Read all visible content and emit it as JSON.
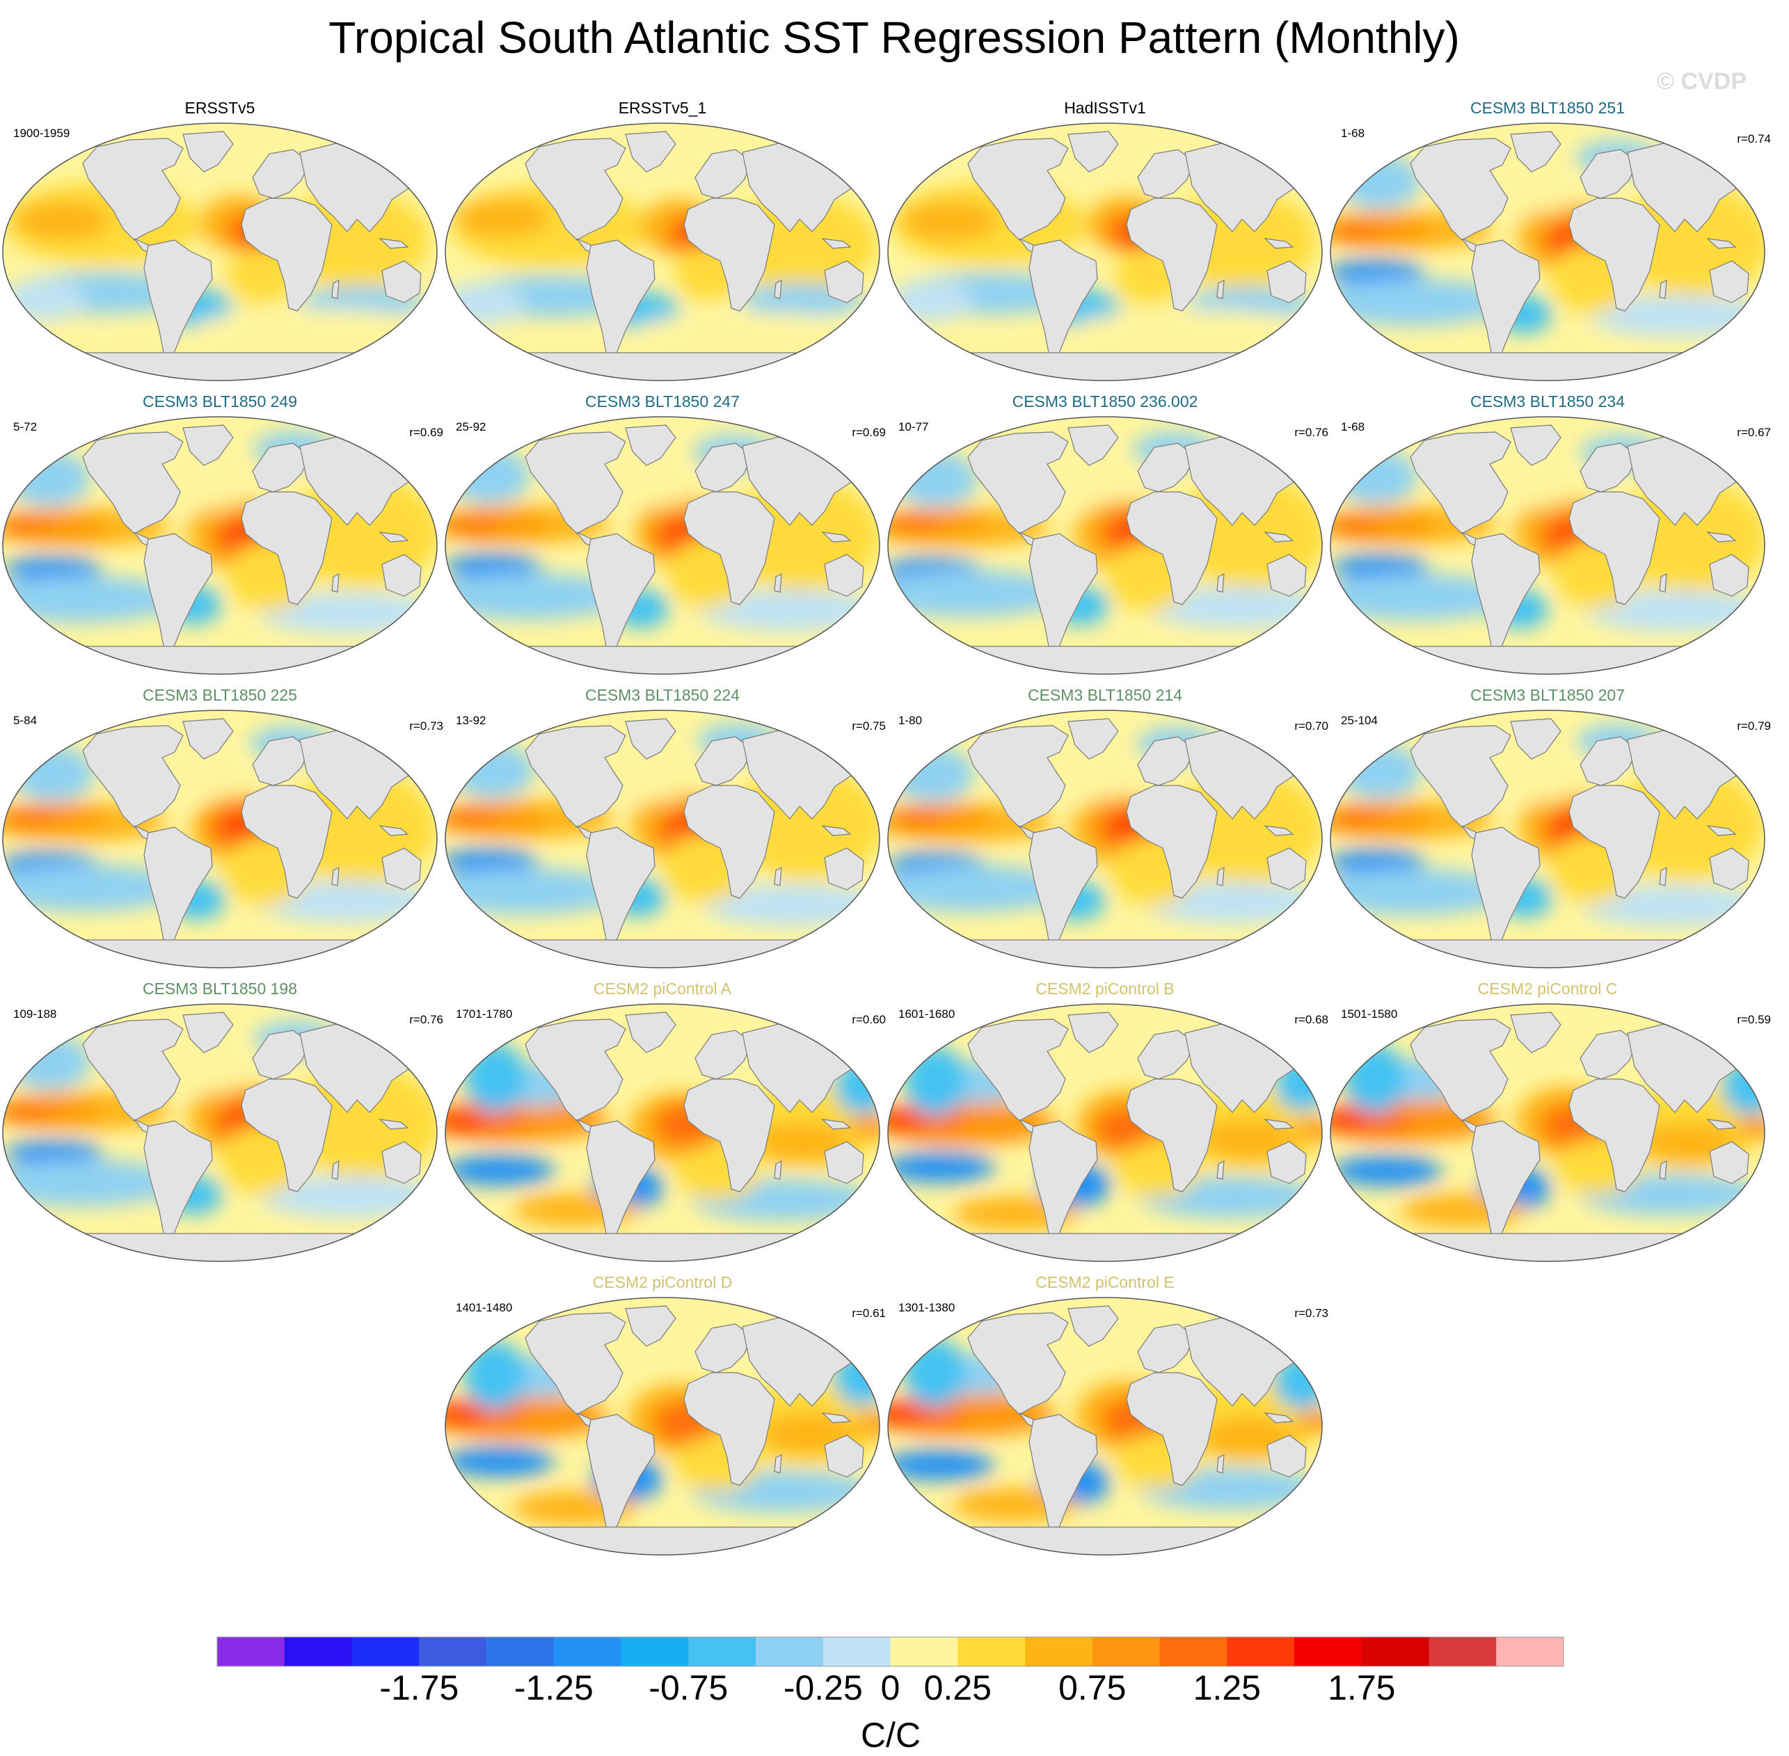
{
  "title": "Tropical South Atlantic SST Regression Pattern (Monthly)",
  "watermark": "© CVDP",
  "colors": {
    "land": "#e3e3e3",
    "coast": "#7a7a7a",
    "title_obs": "#000000",
    "title_cesm3_a": "#1f6b86",
    "title_cesm3_b": "#5e8f66",
    "title_cesm2": "#d3c26c"
  },
  "chart_data": {
    "type": "map",
    "projection": "Robinson (global)",
    "panels": [
      {
        "name": "ERSSTv5",
        "period": "1900-1959",
        "r": "",
        "group": "obs",
        "style": "obs"
      },
      {
        "name": "ERSSTv5_1",
        "period": "",
        "r": "",
        "group": "obs",
        "style": "obs"
      },
      {
        "name": "HadISSTv1",
        "period": "",
        "r": "",
        "group": "obs",
        "style": "obs"
      },
      {
        "name": "CESM3 BLT1850 251",
        "period": "1-68",
        "r": "r=0.74",
        "group": "cesm3_a",
        "style": "cesm3"
      },
      {
        "name": "CESM3 BLT1850 249",
        "period": "5-72",
        "r": "r=0.69",
        "group": "cesm3_a",
        "style": "cesm3"
      },
      {
        "name": "CESM3 BLT1850 247",
        "period": "25-92",
        "r": "r=0.69",
        "group": "cesm3_a",
        "style": "cesm3"
      },
      {
        "name": "CESM3 BLT1850 236.002",
        "period": "10-77",
        "r": "r=0.76",
        "group": "cesm3_a",
        "style": "cesm3"
      },
      {
        "name": "CESM3 BLT1850 234",
        "period": "1-68",
        "r": "r=0.67",
        "group": "cesm3_a",
        "style": "cesm3"
      },
      {
        "name": "CESM3 BLT1850 225",
        "period": "5-84",
        "r": "r=0.73",
        "group": "cesm3_b",
        "style": "cesm3"
      },
      {
        "name": "CESM3 BLT1850 224",
        "period": "13-92",
        "r": "r=0.75",
        "group": "cesm3_b",
        "style": "cesm3"
      },
      {
        "name": "CESM3 BLT1850 214",
        "period": "1-80",
        "r": "r=0.70",
        "group": "cesm3_b",
        "style": "cesm3"
      },
      {
        "name": "CESM3 BLT1850 207",
        "period": "25-104",
        "r": "r=0.79",
        "group": "cesm3_b",
        "style": "cesm3"
      },
      {
        "name": "CESM3 BLT1850 198",
        "period": "109-188",
        "r": "r=0.76",
        "group": "cesm3_b",
        "style": "cesm3"
      },
      {
        "name": "CESM2 piControl A",
        "period": "1701-1780",
        "r": "r=0.60",
        "group": "cesm2",
        "style": "cesm2"
      },
      {
        "name": "CESM2 piControl B",
        "period": "1601-1680",
        "r": "r=0.68",
        "group": "cesm2",
        "style": "cesm2"
      },
      {
        "name": "CESM2 piControl C",
        "period": "1501-1580",
        "r": "r=0.59",
        "group": "cesm2",
        "style": "cesm2"
      },
      {
        "name": "CESM2 piControl D",
        "period": "1401-1480",
        "r": "r=0.61",
        "group": "cesm2",
        "style": "cesm2"
      },
      {
        "name": "CESM2 piControl E",
        "period": "1301-1380",
        "r": "r=0.73",
        "group": "cesm2",
        "style": "cesm2"
      }
    ],
    "colorbar": {
      "units": "C/C",
      "tick_labels": [
        "-1.75",
        "-1.25",
        "-0.75",
        "-0.25",
        "0",
        "0.25",
        "0.75",
        "1.25",
        "1.75"
      ],
      "levels": [
        -2,
        -1.75,
        -1.5,
        -1.25,
        -1,
        -0.75,
        -0.5,
        -0.25,
        0,
        0.25,
        0.5,
        0.75,
        1,
        1.25,
        1.5,
        1.75,
        2
      ],
      "colors": [
        "#8a2be8",
        "#2a10f2",
        "#1c2ef7",
        "#3b5be0",
        "#2f74e8",
        "#2291f5",
        "#15aef2",
        "#45c2f2",
        "#8fd1f2",
        "#bfe2f4",
        "#fff59e",
        "#ffdc3a",
        "#ffb416",
        "#ff9510",
        "#ff6e0a",
        "#ff3a06",
        "#f80000",
        "#d80000",
        "#d83a3a",
        "#ffb3b3"
      ]
    }
  }
}
